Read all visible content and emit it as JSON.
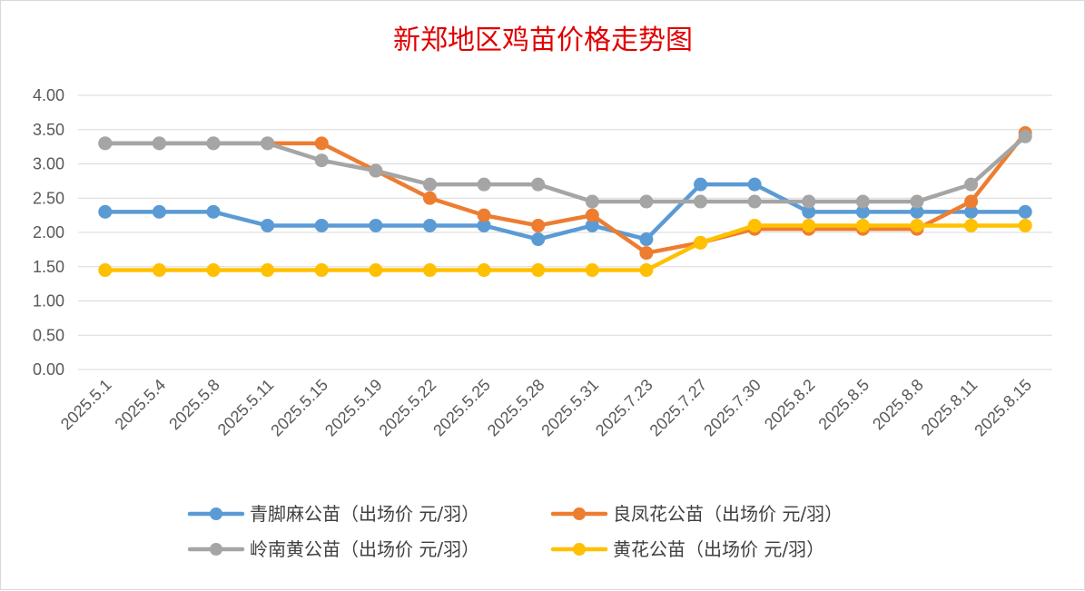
{
  "chart_data": {
    "type": "line",
    "title": "新郑地区鸡苗价格走势图",
    "xlabel": "",
    "ylabel": "",
    "ylim": [
      0,
      4
    ],
    "y_ticks": [
      "0.00",
      "0.50",
      "1.00",
      "1.50",
      "2.00",
      "2.50",
      "3.00",
      "3.50",
      "4.00"
    ],
    "categories": [
      "2025.5.1",
      "2025.5.4",
      "2025.5.8",
      "2025.5.11",
      "2025.5.15",
      "2025.5.19",
      "2025.5.22",
      "2025.5.25",
      "2025.5.28",
      "2025.5.31",
      "2025.7.23",
      "2025.7.27",
      "2025.7.30",
      "2025.8.2",
      "2025.8.5",
      "2025.8.8",
      "2025.8.11",
      "2025.8.15"
    ],
    "grid": true,
    "legend_position": "bottom",
    "series": [
      {
        "name": "青脚麻公苗（出场价 元/羽）",
        "color": "#5B9BD5",
        "values": [
          2.3,
          2.3,
          2.3,
          2.1,
          2.1,
          2.1,
          2.1,
          2.1,
          1.9,
          2.1,
          1.9,
          2.7,
          2.7,
          2.3,
          2.3,
          2.3,
          2.3,
          2.3
        ]
      },
      {
        "name": "良凤花公苗（出场价 元/羽）",
        "color": "#ED7D31",
        "values": [
          3.3,
          3.3,
          3.3,
          3.3,
          3.3,
          2.9,
          2.5,
          2.25,
          2.1,
          2.25,
          1.7,
          1.85,
          2.05,
          2.05,
          2.05,
          2.05,
          2.45,
          3.45
        ]
      },
      {
        "name": "岭南黄公苗（出场价 元/羽）",
        "color": "#A5A5A5",
        "values": [
          3.3,
          3.3,
          3.3,
          3.3,
          3.05,
          2.9,
          2.7,
          2.7,
          2.7,
          2.45,
          2.45,
          2.45,
          2.45,
          2.45,
          2.45,
          2.45,
          2.7,
          3.4
        ]
      },
      {
        "name": "黄花公苗（出场价 元/羽）",
        "color": "#FFC000",
        "values": [
          1.45,
          1.45,
          1.45,
          1.45,
          1.45,
          1.45,
          1.45,
          1.45,
          1.45,
          1.45,
          1.45,
          1.85,
          2.1,
          2.1,
          2.1,
          2.1,
          2.1,
          2.1
        ]
      }
    ]
  }
}
